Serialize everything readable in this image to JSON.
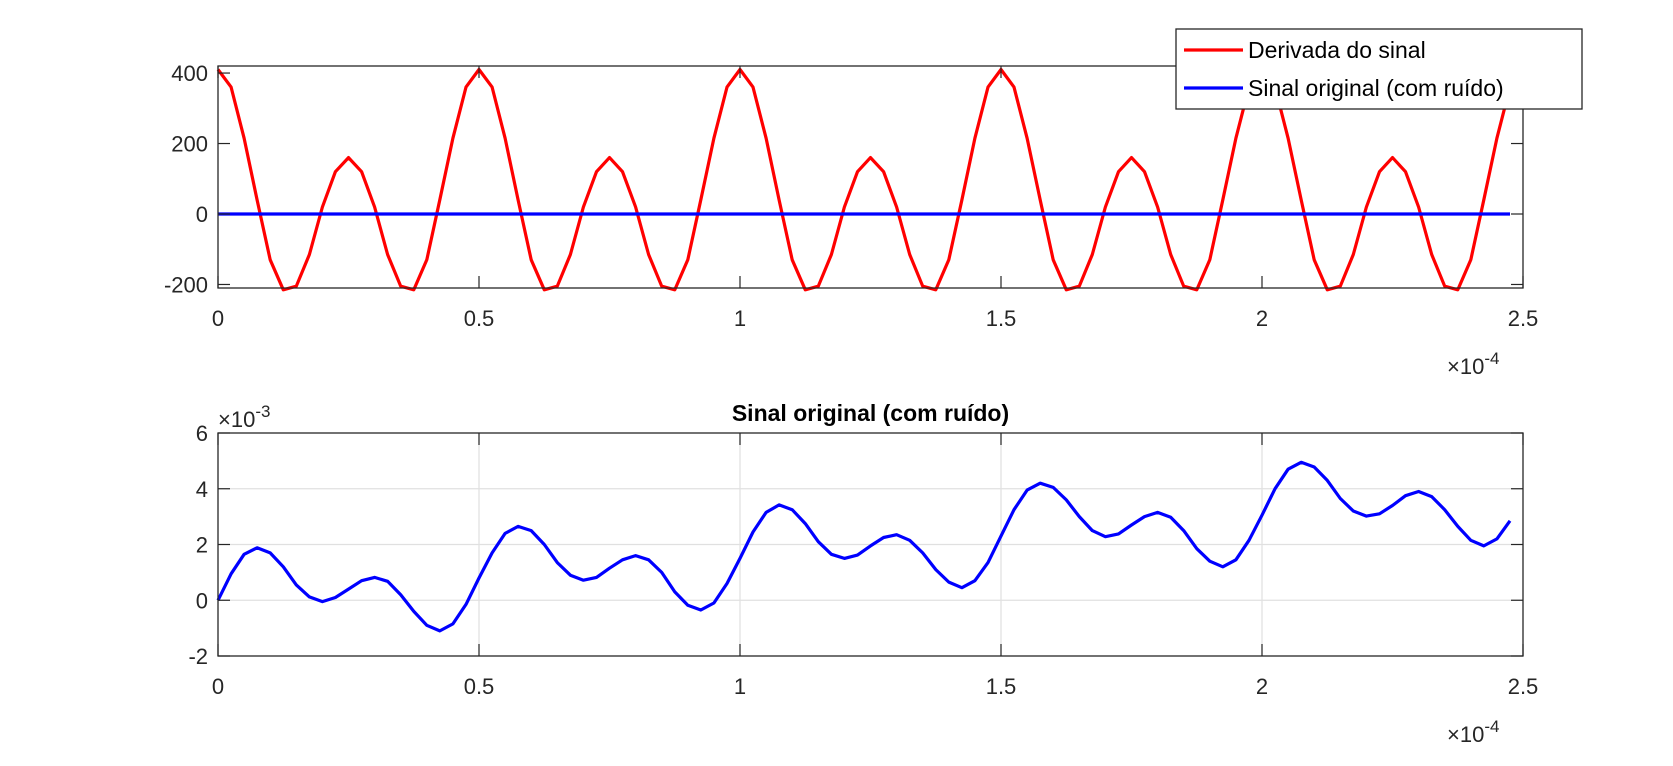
{
  "chart_data": [
    {
      "type": "line",
      "title": "",
      "xlabel": "",
      "ylabel": "",
      "xlim": [
        0,
        2.5
      ],
      "ylim": [
        -210,
        420
      ],
      "x_exponent_label": "-4",
      "y_exponent_label": "",
      "grid": false,
      "legend_position": "top-right",
      "xticks": [
        "0",
        "0.5",
        "1",
        "1.5",
        "2",
        "2.5"
      ],
      "yticks": [
        "-200",
        "0",
        "200",
        "400"
      ],
      "series": [
        {
          "name": "Derivada do sinal",
          "color": "#ff0000",
          "x": [
            0,
            0.025,
            0.05,
            0.075,
            0.1,
            0.125,
            0.15,
            0.175,
            0.2,
            0.225,
            0.25,
            0.275,
            0.3,
            0.325,
            0.35,
            0.375,
            0.4,
            0.425,
            0.45,
            0.475,
            0.5,
            0.525,
            0.55,
            0.575,
            0.6,
            0.625,
            0.65,
            0.675,
            0.7,
            0.725,
            0.75,
            0.775,
            0.8,
            0.825,
            0.85,
            0.875,
            0.9,
            0.925,
            0.95,
            0.975,
            1.0,
            1.025,
            1.05,
            1.075,
            1.1,
            1.125,
            1.15,
            1.175,
            1.2,
            1.225,
            1.25,
            1.275,
            1.3,
            1.325,
            1.35,
            1.375,
            1.4,
            1.425,
            1.45,
            1.475,
            1.5,
            1.525,
            1.55,
            1.575,
            1.6,
            1.625,
            1.65,
            1.675,
            1.7,
            1.725,
            1.75,
            1.775,
            1.8,
            1.825,
            1.85,
            1.875,
            1.9,
            1.925,
            1.95,
            1.975,
            2.0,
            2.025,
            2.05,
            2.075,
            2.1,
            2.125,
            2.15,
            2.175,
            2.2,
            2.225,
            2.25,
            2.275,
            2.3,
            2.325,
            2.35,
            2.375,
            2.4,
            2.425,
            2.45,
            2.475
          ],
          "y": [
            410,
            360,
            215,
            40,
            -130,
            -215,
            -205,
            -115,
            20,
            120,
            160,
            120,
            20,
            -115,
            -205,
            -215,
            -130,
            40,
            215,
            360,
            410,
            360,
            215,
            40,
            -130,
            -215,
            -205,
            -115,
            20,
            120,
            160,
            120,
            20,
            -115,
            -205,
            -215,
            -130,
            40,
            215,
            360,
            410,
            360,
            215,
            40,
            -130,
            -215,
            -205,
            -115,
            20,
            120,
            160,
            120,
            20,
            -115,
            -205,
            -215,
            -130,
            40,
            215,
            360,
            410,
            360,
            215,
            40,
            -130,
            -215,
            -205,
            -115,
            20,
            120,
            160,
            120,
            20,
            -115,
            -205,
            -215,
            -130,
            40,
            215,
            360,
            410,
            360,
            215,
            40,
            -130,
            -215,
            -205,
            -115,
            20,
            120,
            160,
            120,
            20,
            -115,
            -205,
            -215,
            -130,
            40,
            215,
            360
          ]
        },
        {
          "name": "Sinal original (com ruído)",
          "color": "#0000ff",
          "x": [
            0,
            2.475
          ],
          "y": [
            0,
            0
          ]
        }
      ]
    },
    {
      "type": "line",
      "title": "Sinal original (com ruído)",
      "xlabel": "",
      "ylabel": "",
      "xlim": [
        0,
        2.5
      ],
      "ylim": [
        -2,
        6
      ],
      "x_exponent_label": "-4",
      "y_exponent_label": "-3",
      "grid": true,
      "legend_position": "",
      "xticks": [
        "0",
        "0.5",
        "1",
        "1.5",
        "2",
        "2.5"
      ],
      "yticks": [
        "-2",
        "0",
        "2",
        "4",
        "6"
      ],
      "series": [
        {
          "color": "#0000ff",
          "x": [
            0,
            0.025,
            0.05,
            0.075,
            0.1,
            0.125,
            0.15,
            0.175,
            0.2,
            0.225,
            0.25,
            0.275,
            0.3,
            0.325,
            0.35,
            0.375,
            0.4,
            0.425,
            0.45,
            0.475,
            0.5,
            0.525,
            0.55,
            0.575,
            0.6,
            0.625,
            0.65,
            0.675,
            0.7,
            0.725,
            0.75,
            0.775,
            0.8,
            0.825,
            0.85,
            0.875,
            0.9,
            0.925,
            0.95,
            0.975,
            1.0,
            1.025,
            1.05,
            1.075,
            1.1,
            1.125,
            1.15,
            1.175,
            1.2,
            1.225,
            1.25,
            1.275,
            1.3,
            1.325,
            1.35,
            1.375,
            1.4,
            1.425,
            1.45,
            1.475,
            1.5,
            1.525,
            1.55,
            1.575,
            1.6,
            1.625,
            1.65,
            1.675,
            1.7,
            1.725,
            1.75,
            1.775,
            1.8,
            1.825,
            1.85,
            1.875,
            1.9,
            1.925,
            1.95,
            1.975,
            2.0,
            2.025,
            2.05,
            2.075,
            2.1,
            2.125,
            2.15,
            2.175,
            2.2,
            2.225,
            2.25,
            2.275,
            2.3,
            2.325,
            2.35,
            2.375,
            2.4,
            2.425,
            2.45,
            2.475
          ],
          "y": [
            0.0,
            0.95,
            1.65,
            1.88,
            1.7,
            1.2,
            0.55,
            0.12,
            -0.05,
            0.1,
            0.4,
            0.7,
            0.82,
            0.68,
            0.2,
            -0.4,
            -0.9,
            -1.1,
            -0.85,
            -0.15,
            0.8,
            1.7,
            2.4,
            2.65,
            2.5,
            2.0,
            1.35,
            0.9,
            0.72,
            0.82,
            1.15,
            1.45,
            1.6,
            1.45,
            1.0,
            0.3,
            -0.18,
            -0.35,
            -0.1,
            0.6,
            1.5,
            2.45,
            3.15,
            3.42,
            3.25,
            2.75,
            2.1,
            1.65,
            1.5,
            1.62,
            1.95,
            2.25,
            2.35,
            2.15,
            1.7,
            1.1,
            0.65,
            0.45,
            0.7,
            1.35,
            2.3,
            3.25,
            3.95,
            4.2,
            4.05,
            3.6,
            3.0,
            2.5,
            2.28,
            2.38,
            2.7,
            3.0,
            3.15,
            2.98,
            2.5,
            1.85,
            1.4,
            1.2,
            1.45,
            2.15,
            3.05,
            4.0,
            4.7,
            4.95,
            4.78,
            4.3,
            3.65,
            3.2,
            3.02,
            3.1,
            3.4,
            3.75,
            3.9,
            3.72,
            3.25,
            2.65,
            2.15,
            1.95,
            2.2,
            2.85
          ]
        }
      ]
    }
  ]
}
